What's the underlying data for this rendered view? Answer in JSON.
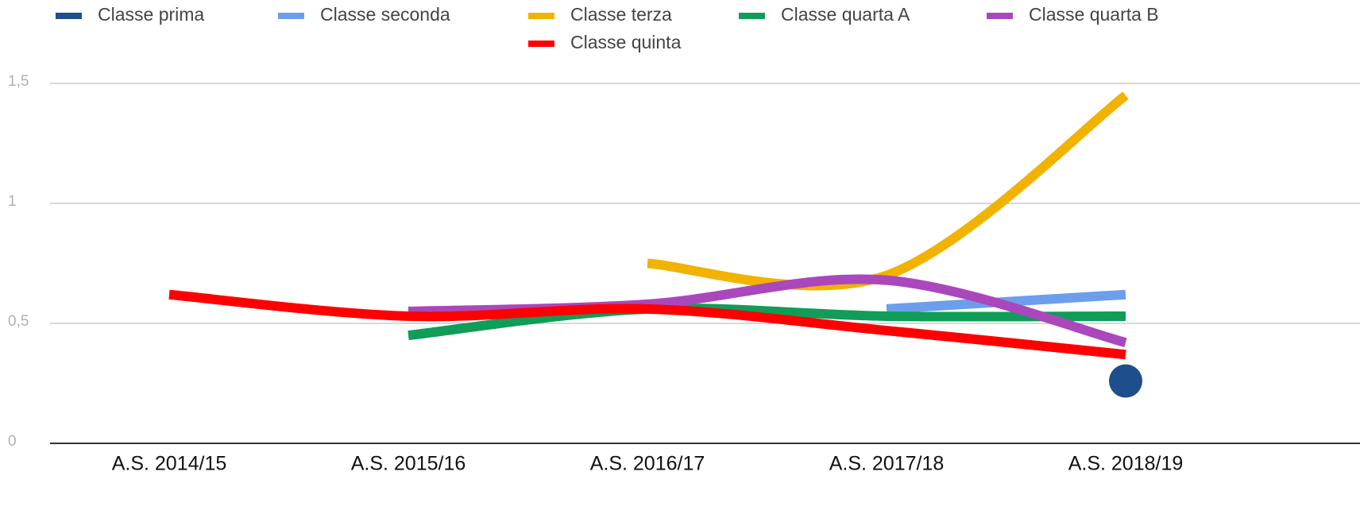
{
  "chart_data": {
    "type": "line",
    "categories": [
      "A.S. 2014/15",
      "A.S. 2015/16",
      "A.S. 2016/17",
      "A.S. 2017/18",
      "A.S. 2018/19"
    ],
    "series": [
      {
        "name": "Classe prima",
        "color": "#1f4e8c",
        "values": [
          null,
          null,
          null,
          null,
          0.26
        ]
      },
      {
        "name": "Classe seconda",
        "color": "#6d9eeb",
        "values": [
          null,
          null,
          null,
          0.56,
          0.62
        ]
      },
      {
        "name": "Classe terza",
        "color": "#f1b300",
        "values": [
          null,
          null,
          0.75,
          0.7,
          1.45
        ]
      },
      {
        "name": "Classe quarta A",
        "color": "#0f9d58",
        "values": [
          null,
          0.45,
          0.56,
          0.53,
          0.53
        ]
      },
      {
        "name": "Classe quarta B",
        "color": "#ab47bc",
        "values": [
          null,
          0.55,
          0.58,
          0.68,
          0.42
        ]
      },
      {
        "name": "Classe quinta",
        "color": "#ff0000",
        "values": [
          0.62,
          0.53,
          0.56,
          0.47,
          0.37
        ]
      }
    ],
    "ylim": [
      0,
      1.5
    ],
    "yticks": [
      0,
      {
        "value": 0.5,
        "label": "0,5"
      },
      1,
      {
        "value": 1.5,
        "label": "1,5"
      }
    ],
    "grid": true,
    "smooth": true,
    "legend": "top"
  }
}
